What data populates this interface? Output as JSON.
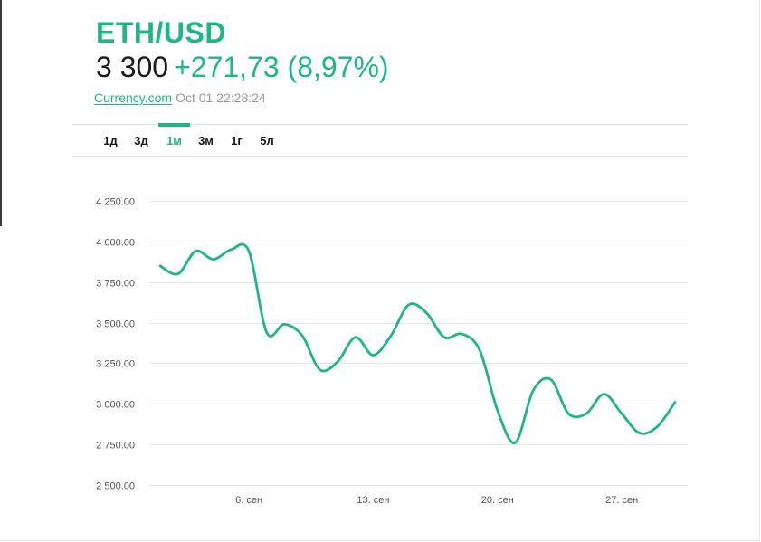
{
  "quote": {
    "pair": "ETH/USD",
    "price": "3 300",
    "change": "+271,73 (8,97%)",
    "source": "Currency.com",
    "timestamp": "Oct 01 22:28:24"
  },
  "tabs": [
    {
      "label": "1д",
      "active": false
    },
    {
      "label": "3д",
      "active": false
    },
    {
      "label": "1м",
      "active": true
    },
    {
      "label": "3м",
      "active": false
    },
    {
      "label": "1г",
      "active": false
    },
    {
      "label": "5л",
      "active": false
    }
  ],
  "colors": {
    "accent": "#1db882",
    "text": "#1a1a1a",
    "muted": "#9a9a9a",
    "grid": "#e6e6e6"
  },
  "chart_data": {
    "type": "line",
    "series": [
      {
        "color": "#1db882",
        "points": [
          [
            "2021-09-01",
            3850
          ],
          [
            "2021-09-02",
            3800
          ],
          [
            "2021-09-03",
            3940
          ],
          [
            "2021-09-04",
            3890
          ],
          [
            "2021-09-05",
            3950
          ],
          [
            "2021-09-06",
            3940
          ],
          [
            "2021-09-07",
            3440
          ],
          [
            "2021-09-08",
            3490
          ],
          [
            "2021-09-09",
            3420
          ],
          [
            "2021-09-10",
            3210
          ],
          [
            "2021-09-11",
            3260
          ],
          [
            "2021-09-12",
            3410
          ],
          [
            "2021-09-13",
            3300
          ],
          [
            "2021-09-14",
            3420
          ],
          [
            "2021-09-15",
            3610
          ],
          [
            "2021-09-16",
            3560
          ],
          [
            "2021-09-17",
            3410
          ],
          [
            "2021-09-18",
            3430
          ],
          [
            "2021-09-19",
            3330
          ],
          [
            "2021-09-20",
            2960
          ],
          [
            "2021-09-21",
            2760
          ],
          [
            "2021-09-22",
            3080
          ],
          [
            "2021-09-23",
            3150
          ],
          [
            "2021-09-24",
            2940
          ],
          [
            "2021-09-25",
            2940
          ],
          [
            "2021-09-26",
            3060
          ],
          [
            "2021-09-27",
            2940
          ],
          [
            "2021-09-28",
            2820
          ],
          [
            "2021-09-29",
            2860
          ],
          [
            "2021-09-30",
            3010
          ]
        ]
      }
    ],
    "x_ticks": [
      {
        "date": "2021-09-06",
        "label": "6. сен"
      },
      {
        "date": "2021-09-13",
        "label": "13. сен"
      },
      {
        "date": "2021-09-20",
        "label": "20. сен"
      },
      {
        "date": "2021-09-27",
        "label": "27. сен"
      }
    ],
    "y_ticks": [
      {
        "value": 2500,
        "label": "2 500.00"
      },
      {
        "value": 2750,
        "label": "2 750.00"
      },
      {
        "value": 3000,
        "label": "3 000.00"
      },
      {
        "value": 3250,
        "label": "3 250.00"
      },
      {
        "value": 3500,
        "label": "3 500.00"
      },
      {
        "value": 3750,
        "label": "3 750.00"
      },
      {
        "value": 4000,
        "label": "4 000.00"
      },
      {
        "value": 4250,
        "label": "4 250.00"
      }
    ],
    "xlim": [
      "2021-09-01",
      "2021-09-30"
    ],
    "ylim": [
      2500,
      4250
    ],
    "grid": true,
    "legend": false
  }
}
